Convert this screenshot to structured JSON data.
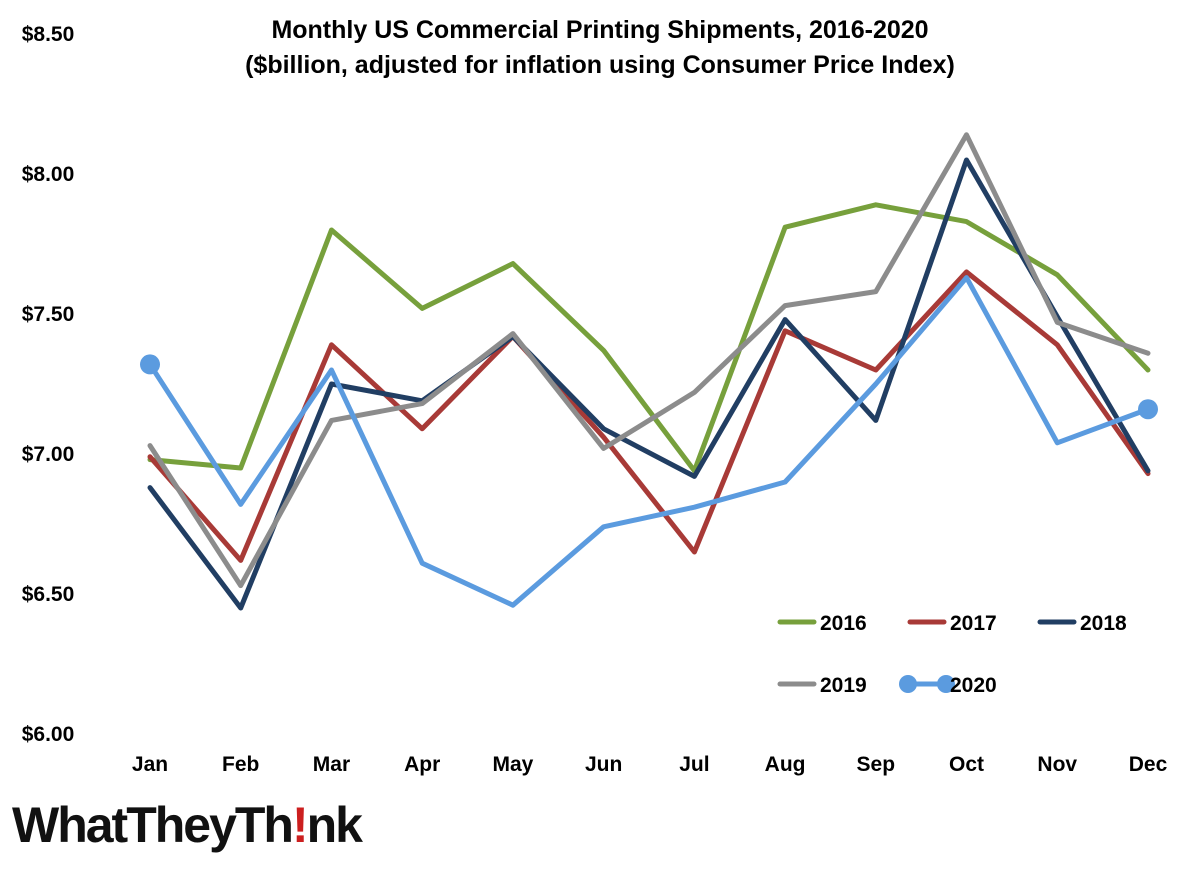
{
  "chart_data": {
    "type": "line",
    "title": [
      "Monthly US Commercial Printing Shipments, 2016-2020",
      "($billion, adjusted for inflation using Consumer Price Index)"
    ],
    "xlabel": "",
    "ylabel": "",
    "categories": [
      "Jan",
      "Feb",
      "Mar",
      "Apr",
      "May",
      "Jun",
      "Jul",
      "Aug",
      "Sep",
      "Oct",
      "Nov",
      "Dec"
    ],
    "ylim": [
      6.0,
      8.5
    ],
    "y_ticks": [
      6.0,
      6.5,
      7.0,
      7.5,
      8.0,
      8.5
    ],
    "y_tick_labels": [
      "$6.00",
      "$6.50",
      "$7.00",
      "$7.50",
      "$8.00",
      "$8.50"
    ],
    "grid": false,
    "legend_position": "bottom-right",
    "series": [
      {
        "name": "2016",
        "color": "#77a03c",
        "markers": false,
        "values": [
          6.98,
          6.95,
          7.8,
          7.52,
          7.68,
          7.37,
          6.94,
          7.81,
          7.89,
          7.83,
          7.64,
          7.3
        ]
      },
      {
        "name": "2017",
        "color": "#a83a37",
        "markers": false,
        "values": [
          6.99,
          6.62,
          7.39,
          7.09,
          7.42,
          7.06,
          6.65,
          7.44,
          7.3,
          7.65,
          7.39,
          6.93
        ]
      },
      {
        "name": "2018",
        "color": "#213e63",
        "markers": false,
        "values": [
          6.88,
          6.45,
          7.25,
          7.19,
          7.42,
          7.09,
          6.92,
          7.48,
          7.12,
          8.05,
          7.49,
          6.94
        ]
      },
      {
        "name": "2019",
        "color": "#8c8c8c",
        "markers": false,
        "values": [
          7.03,
          6.53,
          7.12,
          7.18,
          7.43,
          7.02,
          7.22,
          7.53,
          7.58,
          8.14,
          7.47,
          7.36
        ]
      },
      {
        "name": "2020",
        "color": "#5b9bdf",
        "markers": "ends",
        "values": [
          7.32,
          6.82,
          7.3,
          6.61,
          6.46,
          6.74,
          6.81,
          6.9,
          7.25,
          7.63,
          7.04,
          7.16
        ]
      }
    ]
  },
  "logo": {
    "before": "WhatTheyTh",
    "bang": "!",
    "after": "nk"
  }
}
